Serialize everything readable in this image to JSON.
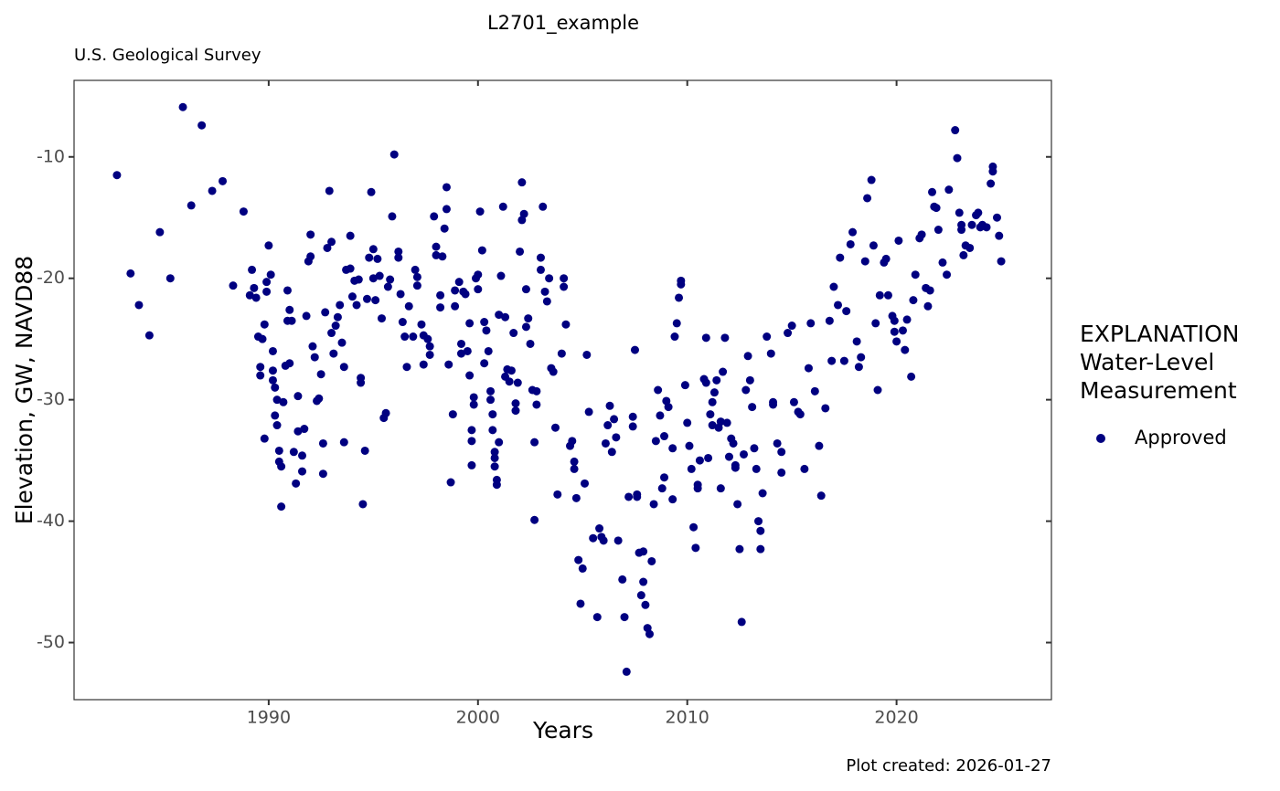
{
  "chart_data": {
    "type": "scatter",
    "title": "L2701_example",
    "subtitle": "U.S. Geological Survey",
    "subtitle_color": "#006400",
    "x_label": "Years",
    "y_label": "Elevation, GW, NAVD88",
    "legend_title": [
      "EXPLANATION",
      "Water-Level",
      "Measurement"
    ],
    "caption": "Plot created: 2026-01-27",
    "xlim": [
      1980.7,
      2027.4
    ],
    "ylim": [
      -54.7,
      -3.7
    ],
    "xticks": [
      1990,
      2000,
      2010,
      2020
    ],
    "yticks": [
      -10,
      -20,
      -30,
      -40,
      -50
    ],
    "grid": false,
    "x": [
      1982.75,
      1983.4,
      1983.8,
      1984.3,
      1984.8,
      1985.3,
      1985.9,
      1986.3,
      1986.8,
      1987.3,
      1987.8,
      1988.3,
      1988.8,
      1989.1,
      1989.2,
      1989.3,
      1989.4,
      1989.5,
      1989.6,
      1989.6,
      1989.7,
      1989.8,
      1989.8,
      1989.9,
      1989.9,
      1990.0,
      1990.1,
      1990.2,
      1990.2,
      1990.2,
      1990.3,
      1990.3,
      1990.4,
      1990.4,
      1990.5,
      1990.5,
      1990.6,
      1990.6,
      1990.7,
      1990.8,
      1990.9,
      1990.9,
      1991.0,
      1991.0,
      1991.1,
      1991.2,
      1991.3,
      1991.4,
      1991.4,
      1991.6,
      1991.6,
      1991.7,
      1991.8,
      1991.9,
      1992.0,
      1992.0,
      1992.1,
      1992.2,
      1992.3,
      1992.4,
      1992.5,
      1992.6,
      1992.6,
      1992.7,
      1992.8,
      1992.9,
      1993.0,
      1993.0,
      1993.1,
      1993.2,
      1993.3,
      1993.4,
      1993.5,
      1993.6,
      1993.6,
      1993.7,
      1993.9,
      1993.9,
      1994.0,
      1994.1,
      1994.2,
      1994.3,
      1994.4,
      1994.4,
      1994.5,
      1994.6,
      1994.7,
      1994.8,
      1994.9,
      1995.0,
      1995.0,
      1995.1,
      1995.2,
      1995.3,
      1995.4,
      1995.5,
      1995.6,
      1995.7,
      1995.8,
      1995.9,
      1996.0,
      1996.2,
      1996.2,
      1996.3,
      1996.4,
      1996.5,
      1996.6,
      1996.7,
      1996.9,
      1997.0,
      1997.1,
      1997.1,
      1997.3,
      1997.4,
      1997.4,
      1997.6,
      1997.7,
      1997.7,
      1997.9,
      1998.0,
      1998.0,
      1998.2,
      1998.2,
      1998.3,
      1998.4,
      1998.5,
      1998.5,
      1998.6,
      1998.7,
      1998.8,
      1998.9,
      1998.9,
      1999.1,
      1999.2,
      1999.2,
      1999.3,
      1999.4,
      1999.5,
      1999.6,
      1999.6,
      1999.7,
      1999.7,
      1999.7,
      1999.8,
      1999.8,
      1999.9,
      2000.0,
      2000.0,
      2000.1,
      2000.2,
      2000.3,
      2000.3,
      2000.4,
      2000.5,
      2000.6,
      2000.6,
      2000.7,
      2000.7,
      2000.8,
      2000.8,
      2000.8,
      2000.9,
      2000.9,
      2001.0,
      2001.0,
      2001.1,
      2001.2,
      2001.3,
      2001.3,
      2001.4,
      2001.5,
      2001.6,
      2001.7,
      2001.8,
      2001.8,
      2001.9,
      2002.0,
      2002.1,
      2002.1,
      2002.2,
      2002.3,
      2002.3,
      2002.4,
      2002.5,
      2002.6,
      2002.7,
      2002.7,
      2002.8,
      2002.8,
      2003.0,
      2003.0,
      2003.1,
      2003.2,
      2003.3,
      2003.4,
      2003.5,
      2003.6,
      2003.7,
      2003.8,
      2004.0,
      2004.1,
      2004.1,
      2004.2,
      2004.4,
      2004.5,
      2004.6,
      2004.6,
      2004.7,
      2004.8,
      2004.9,
      2005.0,
      2005.1,
      2005.2,
      2005.3,
      2005.5,
      2005.7,
      2005.8,
      2005.9,
      2006.0,
      2006.1,
      2006.2,
      2006.3,
      2006.4,
      2006.5,
      2006.6,
      2006.7,
      2006.9,
      2007.0,
      2007.1,
      2007.2,
      2007.4,
      2007.4,
      2007.5,
      2007.6,
      2007.6,
      2007.7,
      2007.8,
      2007.9,
      2007.9,
      2008.0,
      2008.1,
      2008.2,
      2008.3,
      2008.4,
      2008.5,
      2008.6,
      2008.7,
      2008.8,
      2008.9,
      2008.9,
      2009.0,
      2009.1,
      2009.3,
      2009.3,
      2009.4,
      2009.5,
      2009.6,
      2009.7,
      2009.7,
      2009.9,
      2010.0,
      2010.1,
      2010.2,
      2010.3,
      2010.4,
      2010.5,
      2010.5,
      2010.6,
      2010.8,
      2010.9,
      2010.9,
      2011.0,
      2011.1,
      2011.2,
      2011.2,
      2011.3,
      2011.4,
      2011.5,
      2011.6,
      2011.6,
      2011.7,
      2011.8,
      2011.9,
      2012.0,
      2012.1,
      2012.2,
      2012.3,
      2012.3,
      2012.4,
      2012.5,
      2012.6,
      2012.7,
      2012.8,
      2012.9,
      2013.0,
      2013.1,
      2013.2,
      2013.3,
      2013.4,
      2013.5,
      2013.5,
      2013.6,
      2013.8,
      2014.0,
      2014.1,
      2014.1,
      2014.3,
      2014.5,
      2014.5,
      2014.8,
      2015.0,
      2015.1,
      2015.3,
      2015.4,
      2015.6,
      2015.8,
      2015.9,
      2016.1,
      2016.3,
      2016.4,
      2016.6,
      2016.8,
      2016.9,
      2017.0,
      2017.2,
      2017.3,
      2017.5,
      2017.6,
      2017.8,
      2017.9,
      2018.1,
      2018.2,
      2018.3,
      2018.5,
      2018.6,
      2018.8,
      2018.9,
      2019.0,
      2019.1,
      2019.2,
      2019.4,
      2019.5,
      2019.6,
      2019.8,
      2019.9,
      2019.9,
      2020.0,
      2020.1,
      2020.3,
      2020.4,
      2020.5,
      2020.7,
      2020.8,
      2020.9,
      2021.1,
      2021.2,
      2021.4,
      2021.5,
      2021.6,
      2021.7,
      2021.8,
      2021.9,
      2022.0,
      2022.2,
      2022.4,
      2022.5,
      2022.8,
      2022.9,
      2023.0,
      2023.1,
      2023.1,
      2023.2,
      2023.3,
      2023.5,
      2023.6,
      2023.8,
      2023.9,
      2024.0,
      2024.1,
      2024.3,
      2024.5,
      2024.6,
      2024.6,
      2024.8,
      2024.9,
      2025.0
    ],
    "series": [
      {
        "name": "Approved",
        "color": "#000080",
        "values": [
          -11.5,
          -19.6,
          -22.2,
          -24.7,
          -16.2,
          -20.0,
          -5.9,
          -14.0,
          -7.4,
          -12.8,
          -12.0,
          -20.6,
          -14.5,
          -21.4,
          -19.3,
          -20.8,
          -21.6,
          -24.8,
          -27.3,
          -28.0,
          -25.0,
          -33.2,
          -23.8,
          -20.3,
          -21.1,
          -17.3,
          -19.7,
          -27.6,
          -26.0,
          -28.4,
          -31.3,
          -29.0,
          -32.1,
          -30.0,
          -34.2,
          -35.1,
          -35.5,
          -38.8,
          -30.2,
          -27.2,
          -21.0,
          -23.5,
          -22.6,
          -27.0,
          -23.5,
          -34.3,
          -36.9,
          -29.7,
          -32.6,
          -34.6,
          -35.9,
          -32.4,
          -23.1,
          -18.6,
          -16.4,
          -18.2,
          -25.6,
          -26.5,
          -30.1,
          -29.9,
          -27.9,
          -36.1,
          -33.6,
          -22.8,
          -17.5,
          -12.8,
          -17.0,
          -24.5,
          -26.2,
          -23.9,
          -23.2,
          -22.2,
          -25.3,
          -33.5,
          -27.3,
          -19.3,
          -19.2,
          -16.5,
          -21.5,
          -20.2,
          -22.2,
          -20.1,
          -28.6,
          -28.2,
          -38.6,
          -34.2,
          -21.7,
          -18.3,
          -12.9,
          -20.0,
          -17.6,
          -21.8,
          -18.4,
          -19.8,
          -23.3,
          -31.5,
          -31.1,
          -20.7,
          -20.1,
          -14.9,
          -9.8,
          -17.8,
          -18.3,
          -21.3,
          -23.6,
          -24.8,
          -27.3,
          -22.3,
          -24.8,
          -19.3,
          -19.9,
          -20.6,
          -23.8,
          -27.1,
          -24.7,
          -25.0,
          -25.6,
          -26.3,
          -14.9,
          -18.1,
          -17.4,
          -21.4,
          -22.4,
          -18.2,
          -15.9,
          -12.5,
          -14.3,
          -27.1,
          -36.8,
          -31.2,
          -21.0,
          -22.3,
          -20.3,
          -25.4,
          -26.2,
          -21.1,
          -21.3,
          -26.0,
          -28.0,
          -23.7,
          -35.4,
          -33.4,
          -32.5,
          -30.4,
          -29.8,
          -20.0,
          -19.7,
          -20.9,
          -14.5,
          -17.7,
          -23.6,
          -27.0,
          -24.3,
          -26.0,
          -30.0,
          -29.3,
          -31.2,
          -32.5,
          -34.3,
          -34.8,
          -35.5,
          -36.6,
          -37.0,
          -33.5,
          -23.0,
          -19.8,
          -14.1,
          -23.2,
          -28.1,
          -27.5,
          -28.5,
          -27.6,
          -24.5,
          -30.3,
          -30.9,
          -28.6,
          -17.8,
          -15.2,
          -12.1,
          -14.7,
          -20.9,
          -24.0,
          -23.3,
          -25.4,
          -29.2,
          -33.5,
          -39.9,
          -30.4,
          -29.3,
          -19.3,
          -18.3,
          -14.1,
          -21.1,
          -21.9,
          -20.0,
          -27.4,
          -27.7,
          -32.3,
          -37.8,
          -26.2,
          -20.7,
          -20.0,
          -23.8,
          -33.8,
          -33.4,
          -35.7,
          -35.1,
          -38.1,
          -43.2,
          -46.8,
          -43.9,
          -36.9,
          -26.3,
          -31.0,
          -41.4,
          -47.9,
          -40.6,
          -41.3,
          -41.6,
          -33.6,
          -32.1,
          -30.5,
          -34.3,
          -31.6,
          -33.1,
          -41.6,
          -44.8,
          -47.9,
          -52.4,
          -38.0,
          -32.2,
          -31.4,
          -25.9,
          -37.8,
          -38.0,
          -42.6,
          -46.1,
          -45.0,
          -42.5,
          -46.9,
          -48.8,
          -49.3,
          -43.3,
          -38.6,
          -33.4,
          -29.2,
          -31.3,
          -37.3,
          -36.4,
          -33.0,
          -30.1,
          -30.6,
          -34.0,
          -38.2,
          -24.8,
          -23.7,
          -21.6,
          -20.2,
          -20.5,
          -28.8,
          -31.9,
          -33.8,
          -35.7,
          -40.5,
          -42.2,
          -37.3,
          -37.0,
          -35.0,
          -28.3,
          -24.9,
          -28.6,
          -34.8,
          -31.2,
          -32.1,
          -30.2,
          -29.4,
          -28.4,
          -32.3,
          -37.3,
          -31.8,
          -27.7,
          -24.9,
          -31.9,
          -34.7,
          -33.2,
          -33.6,
          -35.6,
          -35.4,
          -38.6,
          -42.3,
          -48.3,
          -34.5,
          -29.2,
          -26.4,
          -28.4,
          -30.6,
          -34.0,
          -35.7,
          -40.0,
          -40.8,
          -42.3,
          -37.7,
          -24.8,
          -26.2,
          -30.2,
          -30.4,
          -33.6,
          -34.3,
          -36.0,
          -24.5,
          -23.9,
          -30.2,
          -31.0,
          -31.2,
          -35.7,
          -27.4,
          -23.7,
          -29.3,
          -33.8,
          -37.9,
          -30.7,
          -23.5,
          -26.8,
          -20.7,
          -22.2,
          -18.3,
          -26.8,
          -22.7,
          -17.2,
          -16.2,
          -25.2,
          -27.3,
          -26.5,
          -18.6,
          -13.4,
          -11.9,
          -17.3,
          -23.7,
          -29.2,
          -21.4,
          -18.7,
          -18.4,
          -21.4,
          -23.1,
          -24.4,
          -23.5,
          -25.2,
          -16.9,
          -24.3,
          -25.9,
          -23.4,
          -28.1,
          -21.8,
          -19.7,
          -16.7,
          -16.4,
          -20.8,
          -22.3,
          -21.0,
          -12.9,
          -14.1,
          -14.2,
          -16.0,
          -18.7,
          -19.7,
          -12.7,
          -7.8,
          -10.1,
          -14.6,
          -15.6,
          -16.0,
          -18.1,
          -17.3,
          -17.5,
          -15.6,
          -14.8,
          -14.6,
          -15.8,
          -15.6,
          -15.8,
          -12.2,
          -11.2,
          -10.8,
          -15.0,
          -16.5,
          -18.6
        ]
      }
    ]
  }
}
